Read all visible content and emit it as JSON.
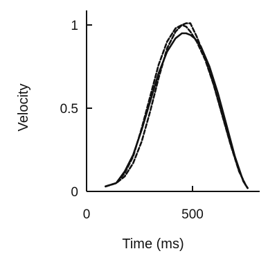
{
  "chart_data": {
    "type": "line",
    "xlabel": "Time (ms)",
    "ylabel": "Velocity",
    "xlim": [
      0,
      830
    ],
    "ylim": [
      0,
      1.05
    ],
    "x_ticks": [
      {
        "value": 0,
        "label": "0"
      },
      {
        "value": 500,
        "label": "500"
      }
    ],
    "y_ticks": [
      {
        "value": 0,
        "label": "0"
      },
      {
        "value": 0.5,
        "label": "0.5"
      },
      {
        "value": 1,
        "label": "1"
      }
    ],
    "grid": false,
    "series": [
      {
        "style": "solid",
        "x": [
          90,
          140,
          180,
          220,
          260,
          300,
          340,
          380,
          420,
          450,
          470,
          490,
          510,
          540,
          580,
          620,
          660,
          700,
          740,
          760
        ],
        "y": [
          0.03,
          0.05,
          0.12,
          0.22,
          0.37,
          0.54,
          0.71,
          0.84,
          0.92,
          0.95,
          0.95,
          0.94,
          0.92,
          0.87,
          0.75,
          0.59,
          0.4,
          0.21,
          0.06,
          0.02
        ]
      },
      {
        "style": "dashed",
        "x": [
          90,
          140,
          180,
          220,
          260,
          300,
          340,
          380,
          420,
          450,
          470,
          490,
          520,
          560,
          600,
          640,
          680,
          720,
          750,
          760
        ],
        "y": [
          0.03,
          0.05,
          0.11,
          0.21,
          0.38,
          0.57,
          0.76,
          0.9,
          0.98,
          1.0,
          1.01,
          1.01,
          0.93,
          0.8,
          0.64,
          0.46,
          0.28,
          0.12,
          0.04,
          0.02
        ]
      },
      {
        "style": "dashed",
        "x": [
          90,
          140,
          180,
          220,
          260,
          300,
          340,
          380,
          420,
          450,
          470,
          490,
          520,
          560,
          600,
          640,
          680,
          720,
          750,
          760
        ],
        "y": [
          0.03,
          0.05,
          0.09,
          0.17,
          0.3,
          0.48,
          0.68,
          0.86,
          0.96,
          1.0,
          0.99,
          0.96,
          0.9,
          0.79,
          0.64,
          0.46,
          0.28,
          0.12,
          0.04,
          0.02
        ]
      }
    ]
  }
}
